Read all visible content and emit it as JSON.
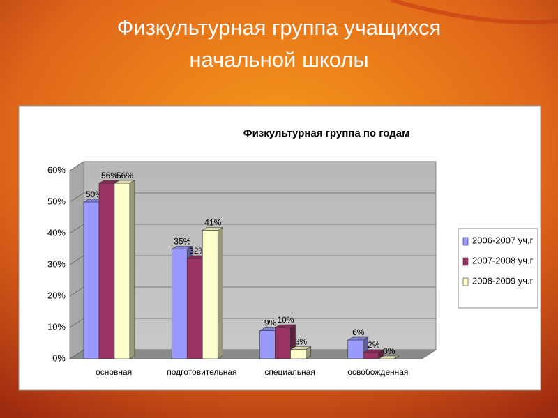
{
  "slide_title": [
    "Физкультурная группа учащихся",
    "начальной школы"
  ],
  "chart_data": {
    "type": "bar3d",
    "title": "Физкультурная группа по годам",
    "categories": [
      "основная",
      "подготовительная",
      "специальная",
      "освобожденная"
    ],
    "series": [
      {
        "name": "2006-2007 уч.г",
        "color": "#9999ff",
        "values": [
          50,
          35,
          9,
          6
        ],
        "value_labels": [
          "50%",
          "35%",
          "9%",
          "6%"
        ]
      },
      {
        "name": "2007-2008 уч.г",
        "color": "#993366",
        "values": [
          56,
          32,
          10,
          2
        ],
        "value_labels": [
          "56%",
          "32%",
          "10%",
          "2%"
        ]
      },
      {
        "name": "2008-2009 уч.г",
        "color": "#ffffcc",
        "values": [
          56,
          41,
          3,
          0
        ],
        "value_labels": [
          "56%",
          "41%",
          "3%",
          "0%"
        ]
      }
    ],
    "ylim": [
      0,
      60
    ],
    "yticks": [
      {
        "value": 0,
        "label": "0%"
      },
      {
        "value": 10,
        "label": "10%"
      },
      {
        "value": 20,
        "label": "20%"
      },
      {
        "value": 30,
        "label": "30%"
      },
      {
        "value": 40,
        "label": "40%"
      },
      {
        "value": 50,
        "label": "50%"
      },
      {
        "value": 60,
        "label": "60%"
      }
    ],
    "grid": true,
    "legend": "right"
  }
}
